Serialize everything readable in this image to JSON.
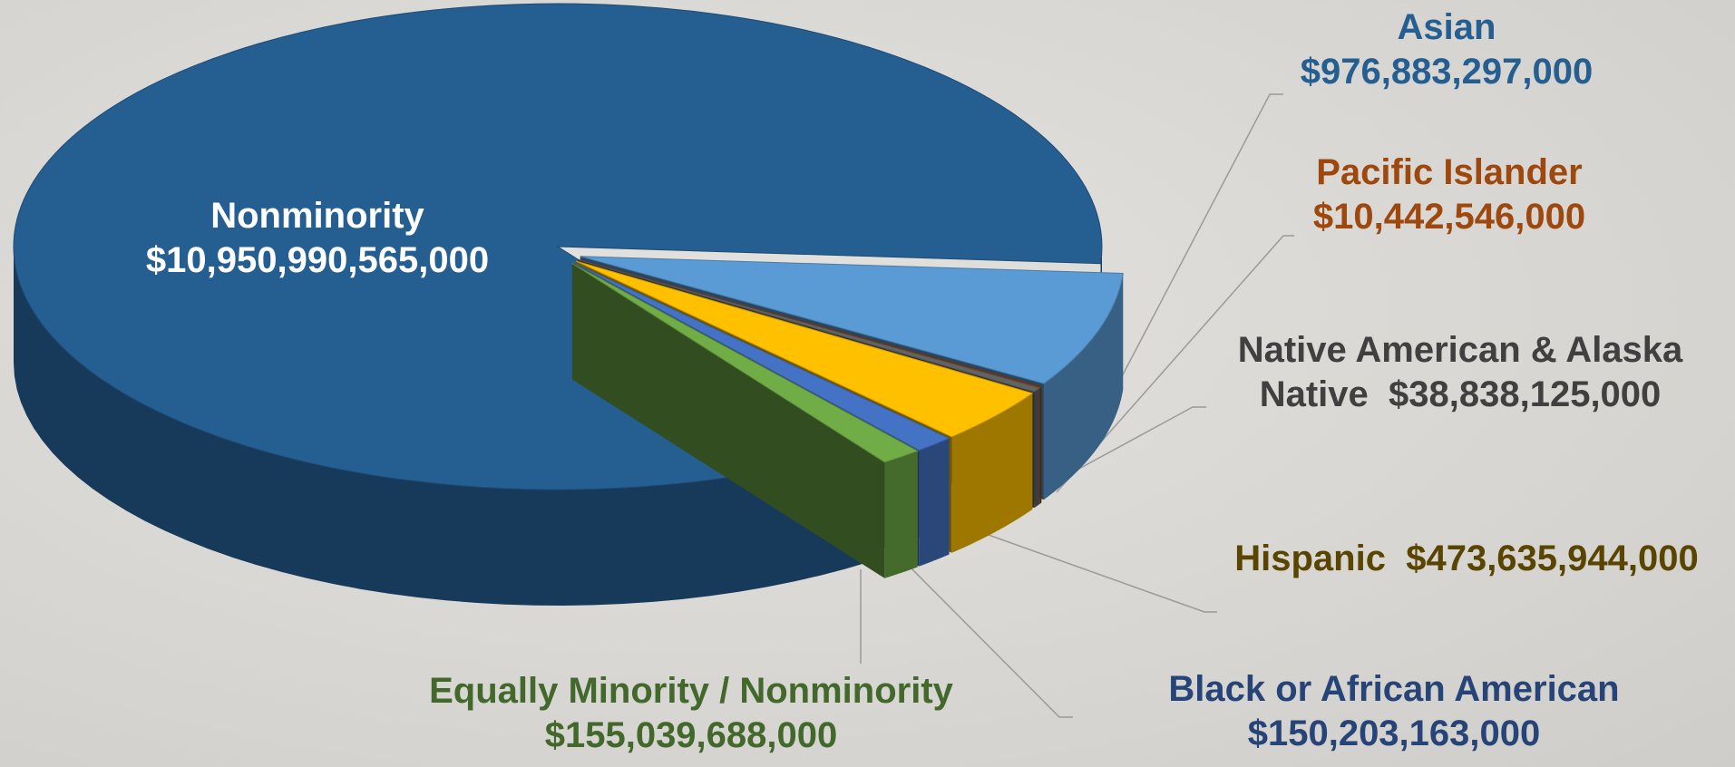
{
  "chart_data": {
    "type": "pie3d",
    "categories": [
      "Asian",
      "Pacific Islander",
      "Native American & Alaska Native",
      "Hispanic",
      "Black or African American",
      "Equally Minority / Nonminority",
      "Nonminority"
    ],
    "values": [
      976883297000,
      10442546000,
      38838125000,
      473635944000,
      150203163000,
      155039688000,
      10950990565000
    ],
    "value_labels": [
      "$976,883,297,000",
      "$10,442,546,000",
      "$38,838,125,000",
      "$473,635,944,000",
      "$150,203,163,000",
      "$155,039,688,000",
      "$10,950,990,565,000"
    ],
    "colors": [
      "#5b9bd5",
      "#843c0c",
      "#636363",
      "#ffc000",
      "#4472c4",
      "#70ad47",
      "#255e91"
    ],
    "label_colors": [
      "#255e91",
      "#9e480e",
      "#404040",
      "#594400",
      "#264478",
      "#43682b",
      "#ffffff"
    ]
  }
}
